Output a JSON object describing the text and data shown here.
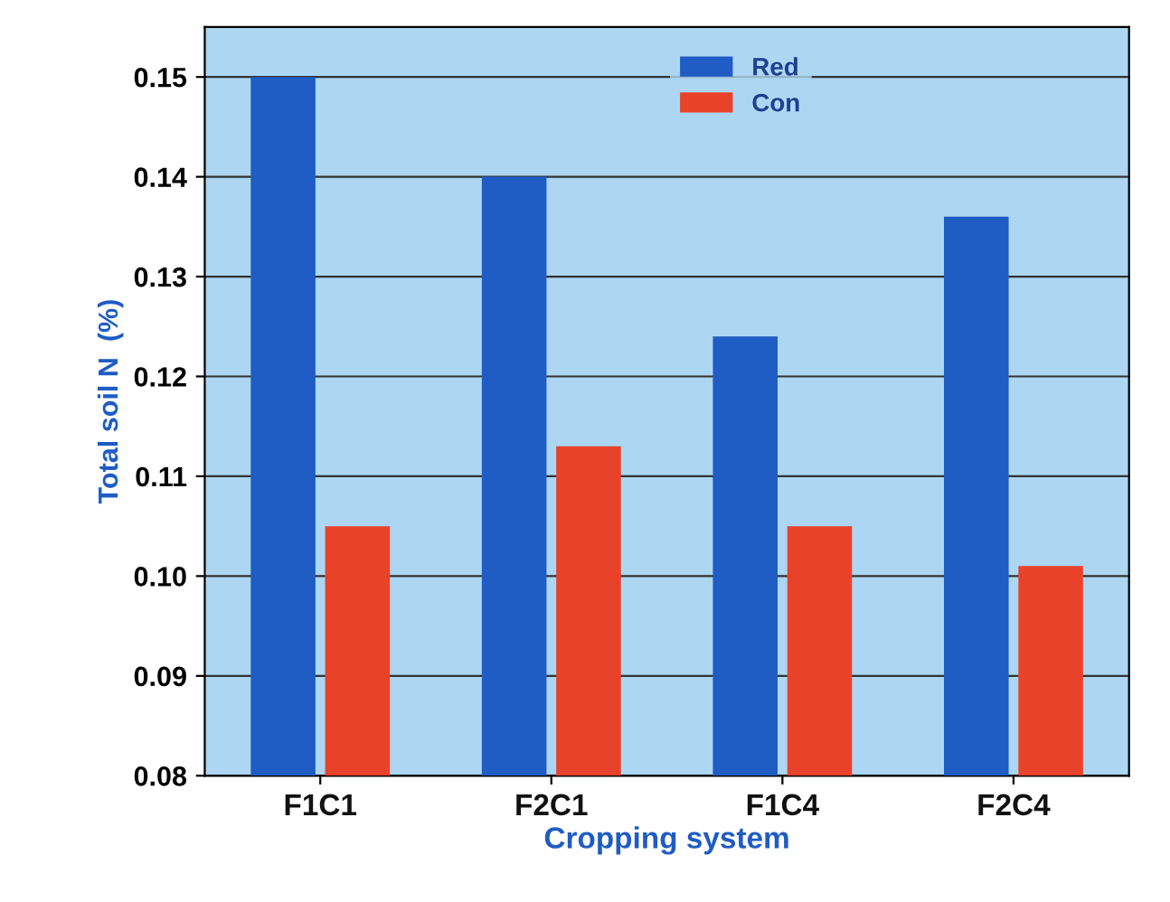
{
  "chart_data": {
    "type": "bar",
    "xlabel": "Cropping system",
    "ylabel": "Total soil N  (%)",
    "categories": [
      "F1C1",
      "F2C1",
      "F1C4",
      "F2C4"
    ],
    "series": [
      {
        "name": "Red",
        "color": "#1f5cc4",
        "values": [
          0.15,
          0.14,
          0.124,
          0.136
        ]
      },
      {
        "name": "Con",
        "color": "#e8432a",
        "values": [
          0.105,
          0.113,
          0.105,
          0.101
        ]
      }
    ],
    "ylim": [
      0.08,
      0.155
    ],
    "yticks": [
      0.08,
      0.09,
      {
        "value": 0.1,
        "label": "0.10"
      },
      0.11,
      0.12,
      0.13,
      0.14,
      0.15
    ],
    "grid": "y",
    "legend": "top center"
  }
}
